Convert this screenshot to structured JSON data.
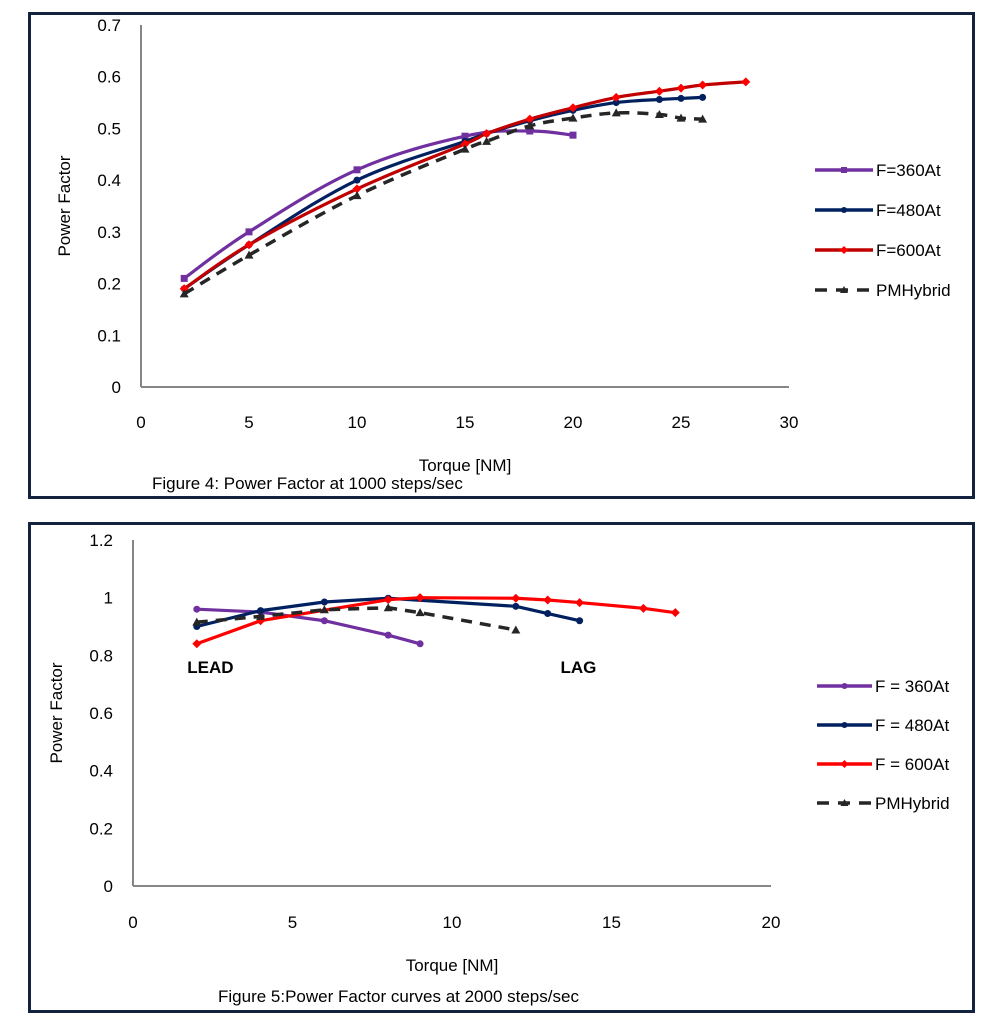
{
  "chart_data": [
    {
      "type": "line",
      "caption": "Figure 4: Power Factor at 1000 steps/sec",
      "title": "",
      "xlabel": "Torque [NM]",
      "ylabel": "Power Factor",
      "xlim": [
        0,
        30
      ],
      "ylim": [
        0,
        0.7
      ],
      "xticks": [
        "0",
        "5",
        "10",
        "15",
        "20",
        "25",
        "30"
      ],
      "xtick_values": [
        0,
        5,
        10,
        15,
        20,
        25,
        30
      ],
      "yticks": [
        "0",
        "0.1",
        "0.2",
        "0.3",
        "0.4",
        "0.5",
        "0.6",
        "0.7"
      ],
      "ytick_values": [
        0,
        0.1,
        0.2,
        0.3,
        0.4,
        0.5,
        0.6,
        0.7
      ],
      "grid": false,
      "legend_position": "right",
      "series": [
        {
          "name": "F=360At",
          "color": "#7030a0",
          "marker": "square",
          "dashed": false,
          "x": [
            2,
            5,
            10,
            15,
            18,
            20
          ],
          "y": [
            0.21,
            0.3,
            0.42,
            0.485,
            0.495,
            0.487
          ]
        },
        {
          "name": "F=480At",
          "color": "#002060",
          "marker": "circle",
          "dashed": false,
          "x": [
            2,
            5,
            10,
            15,
            16,
            18,
            20,
            22,
            24,
            25,
            26
          ],
          "y": [
            0.19,
            0.275,
            0.4,
            0.475,
            0.49,
            0.515,
            0.535,
            0.55,
            0.556,
            0.558,
            0.56
          ]
        },
        {
          "name": "F=600At",
          "color": "#c00000",
          "marker": "diamond",
          "dashed": false,
          "x": [
            2,
            5,
            10,
            15,
            16,
            18,
            20,
            22,
            24,
            25,
            26,
            28
          ],
          "y": [
            0.19,
            0.275,
            0.383,
            0.47,
            0.49,
            0.518,
            0.54,
            0.56,
            0.572,
            0.578,
            0.584,
            0.59
          ]
        },
        {
          "name": "PMHybrid",
          "color": "#262626",
          "marker": "triangle",
          "dashed": true,
          "x": [
            2,
            5,
            10,
            15,
            16,
            18,
            20,
            22,
            24,
            25,
            26
          ],
          "y": [
            0.18,
            0.255,
            0.37,
            0.46,
            0.475,
            0.505,
            0.52,
            0.53,
            0.527,
            0.52,
            0.518
          ]
        }
      ],
      "annotations": []
    },
    {
      "type": "line",
      "caption": "Figure 5:Power Factor curves at 2000 steps/sec",
      "title": "",
      "xlabel": "Torque [NM]",
      "ylabel": "Power Factor",
      "xlim": [
        0,
        20
      ],
      "ylim": [
        0,
        1.2
      ],
      "xticks": [
        "0",
        "5",
        "10",
        "15",
        "20"
      ],
      "xtick_values": [
        0,
        5,
        10,
        15,
        20
      ],
      "yticks": [
        "0",
        "0.2",
        "0.4",
        "0.6",
        "0.8",
        "1",
        "1.2"
      ],
      "ytick_values": [
        0,
        0.2,
        0.4,
        0.6,
        0.8,
        1.0,
        1.2
      ],
      "grid": false,
      "legend_position": "right",
      "series": [
        {
          "name": "F = 360At",
          "color": "#7030a0",
          "marker": "circle",
          "dashed": false,
          "x": [
            2,
            4,
            6,
            8,
            9
          ],
          "y": [
            0.96,
            0.95,
            0.92,
            0.87,
            0.84
          ]
        },
        {
          "name": "F = 480At",
          "color": "#002060",
          "marker": "circle",
          "dashed": false,
          "x": [
            2,
            4,
            6,
            8,
            12,
            13,
            14
          ],
          "y": [
            0.9,
            0.955,
            0.985,
            0.998,
            0.97,
            0.945,
            0.92
          ]
        },
        {
          "name": "F = 600At",
          "color": "#ff0000",
          "marker": "diamond",
          "dashed": false,
          "x": [
            2,
            4,
            8,
            9,
            12,
            13,
            14,
            16,
            17
          ],
          "y": [
            0.84,
            0.92,
            0.993,
            1.0,
            0.998,
            0.992,
            0.983,
            0.963,
            0.948
          ]
        },
        {
          "name": "PMHybrid",
          "color": "#262626",
          "marker": "triangle",
          "dashed": true,
          "x": [
            2,
            4,
            6,
            8,
            9,
            12
          ],
          "y": [
            0.915,
            0.935,
            0.958,
            0.965,
            0.948,
            0.888
          ]
        }
      ],
      "annotations": [
        {
          "text": "LEAD",
          "x": 1.7,
          "y": 0.76
        },
        {
          "text": "LAG",
          "x": 13.4,
          "y": 0.76
        }
      ]
    }
  ]
}
